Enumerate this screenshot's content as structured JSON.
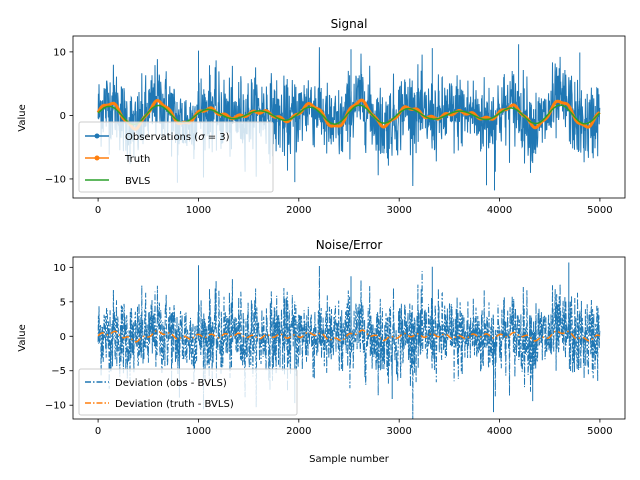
{
  "colors": {
    "observations": "#1f77b4",
    "truth": "#ff7f0e",
    "bvls": "#2ca02c",
    "deviation_obs": "#1f77b4",
    "deviation_truth": "#ff7f0e"
  },
  "chart_data": [
    {
      "type": "line",
      "title": "Signal",
      "xlabel": "",
      "ylabel": "Value",
      "xlim": [
        -250,
        5250
      ],
      "ylim": [
        -13,
        12.5
      ],
      "xticks": [
        0,
        1000,
        2000,
        3000,
        4000,
        5000
      ],
      "yticks": [
        -10,
        0,
        10
      ],
      "x_range": [
        0,
        5000
      ],
      "n_samples": 5000,
      "legend_position": "lower-left",
      "series": [
        {
          "name": "Observations (σ = 3)",
          "kind": "observations",
          "noise_sigma": 3,
          "observed_min": -11.8,
          "observed_max": 11.2
        },
        {
          "name": "Truth",
          "kind": "truth",
          "amplitude_range": [
            -1.8,
            2.0
          ],
          "dominant_period_samples": 500
        },
        {
          "name": "BVLS",
          "kind": "fit",
          "amplitude_range": [
            -1.3,
            1.5
          ],
          "dominant_period_samples": 500
        }
      ],
      "legend_labels": {
        "obs_prefix": "Observations (",
        "obs_math": "σ",
        "obs_suffix": " = 3)",
        "truth": "Truth",
        "bvls": "BVLS"
      }
    },
    {
      "type": "line",
      "title": "Noise/Error",
      "xlabel": "Sample number",
      "ylabel": "Value",
      "xlim": [
        -250,
        5250
      ],
      "ylim": [
        -12,
        11.5
      ],
      "xticks": [
        0,
        1000,
        2000,
        3000,
        4000,
        5000
      ],
      "yticks": [
        -10,
        -5,
        0,
        5,
        10
      ],
      "x_range": [
        0,
        5000
      ],
      "n_samples": 5000,
      "legend_position": "lower-left",
      "series": [
        {
          "name": "Deviation (obs - BVLS)",
          "kind": "deviation",
          "linestyle": "dash-dot",
          "observed_min": -11.0,
          "observed_max": 10.7
        },
        {
          "name": "Deviation (truth - BVLS)",
          "kind": "deviation",
          "linestyle": "dash-dot",
          "amplitude_range": [
            -1.0,
            0.8
          ]
        }
      ]
    }
  ]
}
